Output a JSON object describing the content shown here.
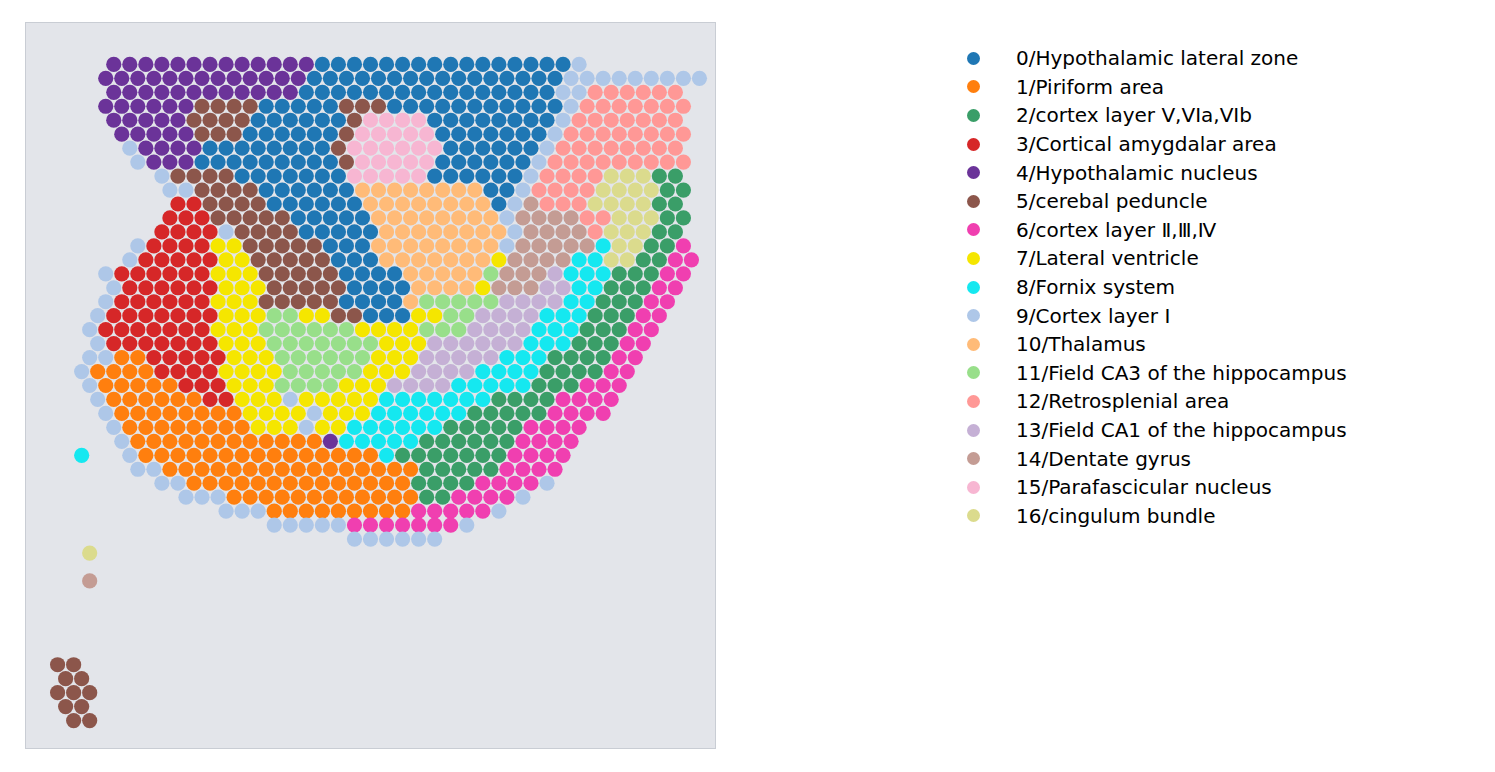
{
  "chart_data": {
    "type": "scatter",
    "legend": "right",
    "tick_labels": false,
    "xlim": [
      0,
      86
    ],
    "ylim": [
      0,
      52
    ],
    "series": [
      {
        "name": "0/Hypothalamic lateral zone",
        "color": "#1f77b4"
      },
      {
        "name": "1/Piriform area",
        "color": "#ff7f0e"
      },
      {
        "name": "2/cortex layer V,VIa,VIb",
        "color": "#3a9e68"
      },
      {
        "name": "3/Cortical amygdalar area",
        "color": "#d62728"
      },
      {
        "name": "4/Hypothalamic nucleus",
        "color": "#6b3399"
      },
      {
        "name": "5/cerebal peduncle",
        "color": "#8c564b"
      },
      {
        "name": "6/cortex layer Ⅱ,Ⅲ,Ⅳ",
        "color": "#f03fb0"
      },
      {
        "name": "7/Lateral ventricle",
        "color": "#f5e600"
      },
      {
        "name": "8/Fornix system",
        "color": "#15e8f0"
      },
      {
        "name": "9/Cortex layer I",
        "color": "#aec7e8"
      },
      {
        "name": "10/Thalamus",
        "color": "#ffbb78"
      },
      {
        "name": "11/Field CA3 of the hippocampus",
        "color": "#98df8a"
      },
      {
        "name": "12/Retrosplenial area",
        "color": "#ff9896"
      },
      {
        "name": "13/Field CA1 of the hippocampus",
        "color": "#c5b0d5"
      },
      {
        "name": "14/Dentate gyrus",
        "color": "#c49c94"
      },
      {
        "name": "15/Parafascicular nucleus",
        "color": "#f7b6d2"
      },
      {
        "name": "16/cingulum bundle",
        "color": "#dbdb8d"
      }
    ],
    "spot_runs": [
      [
        3,
        11,
        35,
        4
      ],
      [
        3,
        37,
        67,
        0
      ],
      [
        3,
        69,
        69,
        9
      ],
      [
        4,
        10,
        34,
        4
      ],
      [
        4,
        36,
        66,
        0
      ],
      [
        4,
        68,
        84,
        9
      ],
      [
        5,
        11,
        33,
        4
      ],
      [
        5,
        35,
        65,
        0
      ],
      [
        5,
        67,
        69,
        9
      ],
      [
        5,
        71,
        81,
        12
      ],
      [
        6,
        10,
        20,
        4
      ],
      [
        6,
        22,
        28,
        5
      ],
      [
        6,
        30,
        38,
        0
      ],
      [
        6,
        40,
        44,
        5
      ],
      [
        6,
        46,
        66,
        0
      ],
      [
        6,
        68,
        68,
        9
      ],
      [
        6,
        70,
        82,
        12
      ],
      [
        7,
        11,
        19,
        4
      ],
      [
        7,
        21,
        27,
        5
      ],
      [
        7,
        29,
        39,
        0
      ],
      [
        7,
        41,
        41,
        5
      ],
      [
        7,
        43,
        49,
        15
      ],
      [
        7,
        51,
        65,
        0
      ],
      [
        7,
        67,
        67,
        9
      ],
      [
        7,
        69,
        81,
        12
      ],
      [
        8,
        12,
        20,
        4
      ],
      [
        8,
        22,
        26,
        5
      ],
      [
        8,
        28,
        38,
        0
      ],
      [
        8,
        40,
        40,
        5
      ],
      [
        8,
        42,
        50,
        15
      ],
      [
        8,
        52,
        64,
        0
      ],
      [
        8,
        66,
        66,
        9
      ],
      [
        8,
        68,
        82,
        12
      ],
      [
        9,
        13,
        13,
        9
      ],
      [
        9,
        15,
        21,
        4
      ],
      [
        9,
        23,
        37,
        0
      ],
      [
        9,
        39,
        39,
        5
      ],
      [
        9,
        41,
        51,
        15
      ],
      [
        9,
        53,
        63,
        0
      ],
      [
        9,
        65,
        65,
        9
      ],
      [
        9,
        67,
        81,
        12
      ],
      [
        10,
        14,
        14,
        9
      ],
      [
        10,
        16,
        20,
        4
      ],
      [
        10,
        22,
        38,
        0
      ],
      [
        10,
        40,
        40,
        5
      ],
      [
        10,
        42,
        50,
        15
      ],
      [
        10,
        52,
        62,
        0
      ],
      [
        10,
        64,
        64,
        9
      ],
      [
        10,
        66,
        82,
        12
      ],
      [
        11,
        17,
        17,
        9
      ],
      [
        11,
        19,
        25,
        5
      ],
      [
        11,
        27,
        39,
        0
      ],
      [
        11,
        41,
        49,
        15
      ],
      [
        11,
        51,
        61,
        0
      ],
      [
        11,
        63,
        63,
        9
      ],
      [
        11,
        65,
        71,
        12
      ],
      [
        11,
        73,
        77,
        16
      ],
      [
        11,
        79,
        81,
        2
      ],
      [
        12,
        18,
        20,
        9
      ],
      [
        12,
        22,
        28,
        5
      ],
      [
        12,
        30,
        40,
        0
      ],
      [
        12,
        42,
        56,
        10
      ],
      [
        12,
        58,
        60,
        0
      ],
      [
        12,
        62,
        62,
        9
      ],
      [
        12,
        64,
        70,
        12
      ],
      [
        12,
        72,
        78,
        16
      ],
      [
        12,
        80,
        82,
        2
      ],
      [
        13,
        19,
        21,
        3
      ],
      [
        13,
        23,
        29,
        5
      ],
      [
        13,
        31,
        41,
        0
      ],
      [
        13,
        43,
        57,
        10
      ],
      [
        13,
        59,
        59,
        0
      ],
      [
        13,
        61,
        61,
        9
      ],
      [
        13,
        63,
        63,
        14
      ],
      [
        13,
        65,
        69,
        12
      ],
      [
        13,
        71,
        77,
        16
      ],
      [
        13,
        79,
        81,
        2
      ],
      [
        14,
        18,
        22,
        3
      ],
      [
        14,
        24,
        32,
        5
      ],
      [
        14,
        34,
        42,
        0
      ],
      [
        14,
        44,
        58,
        10
      ],
      [
        14,
        60,
        60,
        9
      ],
      [
        14,
        62,
        68,
        14
      ],
      [
        14,
        70,
        72,
        12
      ],
      [
        14,
        74,
        78,
        16
      ],
      [
        14,
        80,
        82,
        2
      ],
      [
        15,
        17,
        23,
        3
      ],
      [
        15,
        25,
        25,
        9
      ],
      [
        15,
        27,
        33,
        5
      ],
      [
        15,
        35,
        43,
        0
      ],
      [
        15,
        45,
        59,
        10
      ],
      [
        15,
        61,
        61,
        9
      ],
      [
        15,
        63,
        69,
        14
      ],
      [
        15,
        71,
        71,
        12
      ],
      [
        15,
        73,
        77,
        16
      ],
      [
        15,
        79,
        81,
        2
      ],
      [
        16,
        14,
        14,
        9
      ],
      [
        16,
        16,
        22,
        3
      ],
      [
        16,
        24,
        26,
        7
      ],
      [
        16,
        28,
        36,
        5
      ],
      [
        16,
        38,
        42,
        0
      ],
      [
        16,
        44,
        58,
        10
      ],
      [
        16,
        60,
        60,
        9
      ],
      [
        16,
        62,
        70,
        14
      ],
      [
        16,
        72,
        72,
        8
      ],
      [
        16,
        74,
        76,
        16
      ],
      [
        16,
        78,
        80,
        2
      ],
      [
        16,
        82,
        82,
        6
      ],
      [
        17,
        13,
        13,
        9
      ],
      [
        17,
        15,
        23,
        3
      ],
      [
        17,
        25,
        27,
        7
      ],
      [
        17,
        29,
        37,
        5
      ],
      [
        17,
        39,
        43,
        0
      ],
      [
        17,
        45,
        57,
        10
      ],
      [
        17,
        59,
        59,
        7
      ],
      [
        17,
        61,
        67,
        14
      ],
      [
        17,
        69,
        71,
        8
      ],
      [
        17,
        73,
        75,
        16
      ],
      [
        17,
        77,
        79,
        2
      ],
      [
        17,
        81,
        83,
        6
      ],
      [
        18,
        10,
        10,
        9
      ],
      [
        18,
        12,
        22,
        3
      ],
      [
        18,
        24,
        28,
        7
      ],
      [
        18,
        30,
        38,
        5
      ],
      [
        18,
        40,
        46,
        0
      ],
      [
        18,
        48,
        56,
        10
      ],
      [
        18,
        58,
        58,
        11
      ],
      [
        18,
        60,
        64,
        14
      ],
      [
        18,
        66,
        66,
        13
      ],
      [
        18,
        68,
        72,
        8
      ],
      [
        18,
        74,
        78,
        2
      ],
      [
        18,
        80,
        82,
        6
      ],
      [
        19,
        11,
        11,
        9
      ],
      [
        19,
        13,
        23,
        3
      ],
      [
        19,
        25,
        29,
        7
      ],
      [
        19,
        31,
        39,
        5
      ],
      [
        19,
        41,
        47,
        0
      ],
      [
        19,
        49,
        55,
        10
      ],
      [
        19,
        57,
        57,
        7
      ],
      [
        19,
        59,
        63,
        14
      ],
      [
        19,
        65,
        67,
        13
      ],
      [
        19,
        69,
        71,
        8
      ],
      [
        19,
        73,
        77,
        2
      ],
      [
        19,
        79,
        81,
        6
      ],
      [
        20,
        10,
        10,
        9
      ],
      [
        20,
        12,
        22,
        3
      ],
      [
        20,
        24,
        28,
        7
      ],
      [
        20,
        30,
        38,
        5
      ],
      [
        20,
        40,
        46,
        0
      ],
      [
        20,
        48,
        48,
        10
      ],
      [
        20,
        50,
        58,
        11
      ],
      [
        20,
        60,
        66,
        13
      ],
      [
        20,
        68,
        70,
        8
      ],
      [
        20,
        72,
        76,
        2
      ],
      [
        20,
        78,
        80,
        6
      ],
      [
        21,
        9,
        9,
        9
      ],
      [
        21,
        11,
        23,
        3
      ],
      [
        21,
        25,
        29,
        7
      ],
      [
        21,
        31,
        33,
        11
      ],
      [
        21,
        35,
        37,
        7
      ],
      [
        21,
        39,
        41,
        5
      ],
      [
        21,
        43,
        47,
        0
      ],
      [
        21,
        49,
        51,
        7
      ],
      [
        21,
        53,
        55,
        11
      ],
      [
        21,
        57,
        63,
        13
      ],
      [
        21,
        65,
        69,
        8
      ],
      [
        21,
        71,
        75,
        2
      ],
      [
        21,
        77,
        79,
        6
      ],
      [
        22,
        8,
        8,
        9
      ],
      [
        22,
        10,
        22,
        3
      ],
      [
        22,
        24,
        28,
        7
      ],
      [
        22,
        30,
        40,
        11
      ],
      [
        22,
        42,
        48,
        7
      ],
      [
        22,
        50,
        54,
        11
      ],
      [
        22,
        56,
        62,
        13
      ],
      [
        22,
        64,
        68,
        8
      ],
      [
        22,
        70,
        74,
        2
      ],
      [
        22,
        76,
        78,
        6
      ],
      [
        23,
        9,
        9,
        9
      ],
      [
        23,
        11,
        23,
        3
      ],
      [
        23,
        25,
        29,
        7
      ],
      [
        23,
        31,
        43,
        11
      ],
      [
        23,
        45,
        49,
        7
      ],
      [
        23,
        51,
        61,
        13
      ],
      [
        23,
        63,
        67,
        8
      ],
      [
        23,
        69,
        73,
        2
      ],
      [
        23,
        75,
        77,
        6
      ],
      [
        24,
        8,
        10,
        9
      ],
      [
        24,
        12,
        14,
        1
      ],
      [
        24,
        16,
        24,
        3
      ],
      [
        24,
        26,
        30,
        7
      ],
      [
        24,
        32,
        42,
        11
      ],
      [
        24,
        44,
        48,
        7
      ],
      [
        24,
        50,
        58,
        13
      ],
      [
        24,
        60,
        64,
        8
      ],
      [
        24,
        66,
        72,
        2
      ],
      [
        24,
        74,
        76,
        6
      ],
      [
        25,
        7,
        7,
        9
      ],
      [
        25,
        9,
        15,
        1
      ],
      [
        25,
        17,
        23,
        3
      ],
      [
        25,
        25,
        31,
        7
      ],
      [
        25,
        33,
        41,
        11
      ],
      [
        25,
        43,
        47,
        7
      ],
      [
        25,
        49,
        55,
        13
      ],
      [
        25,
        57,
        63,
        8
      ],
      [
        25,
        65,
        71,
        2
      ],
      [
        25,
        73,
        75,
        6
      ],
      [
        26,
        8,
        8,
        9
      ],
      [
        26,
        10,
        18,
        1
      ],
      [
        26,
        20,
        24,
        3
      ],
      [
        26,
        26,
        30,
        7
      ],
      [
        26,
        32,
        38,
        11
      ],
      [
        26,
        40,
        44,
        7
      ],
      [
        26,
        46,
        52,
        13
      ],
      [
        26,
        54,
        62,
        8
      ],
      [
        26,
        64,
        68,
        2
      ],
      [
        26,
        70,
        74,
        6
      ],
      [
        27,
        9,
        9,
        9
      ],
      [
        27,
        11,
        21,
        1
      ],
      [
        27,
        23,
        25,
        3
      ],
      [
        27,
        27,
        31,
        7
      ],
      [
        27,
        33,
        33,
        9
      ],
      [
        27,
        35,
        43,
        7
      ],
      [
        27,
        45,
        57,
        8
      ],
      [
        27,
        59,
        65,
        2
      ],
      [
        27,
        67,
        73,
        6
      ],
      [
        28,
        10,
        10,
        9
      ],
      [
        28,
        12,
        26,
        1
      ],
      [
        28,
        28,
        34,
        7
      ],
      [
        28,
        36,
        36,
        9
      ],
      [
        28,
        38,
        42,
        7
      ],
      [
        28,
        44,
        54,
        8
      ],
      [
        28,
        56,
        64,
        2
      ],
      [
        28,
        66,
        72,
        6
      ],
      [
        29,
        11,
        11,
        9
      ],
      [
        29,
        13,
        27,
        1
      ],
      [
        29,
        29,
        33,
        7
      ],
      [
        29,
        35,
        35,
        9
      ],
      [
        29,
        37,
        39,
        7
      ],
      [
        29,
        41,
        51,
        8
      ],
      [
        29,
        53,
        61,
        2
      ],
      [
        29,
        63,
        69,
        6
      ],
      [
        30,
        12,
        12,
        9
      ],
      [
        30,
        14,
        36,
        1
      ],
      [
        30,
        38,
        38,
        4
      ],
      [
        30,
        40,
        48,
        8
      ],
      [
        30,
        50,
        60,
        2
      ],
      [
        30,
        62,
        68,
        6
      ],
      [
        31,
        7,
        7,
        8
      ],
      [
        31,
        13,
        13,
        9
      ],
      [
        31,
        15,
        43,
        1
      ],
      [
        31,
        45,
        45,
        8
      ],
      [
        31,
        47,
        59,
        2
      ],
      [
        31,
        61,
        67,
        6
      ],
      [
        32,
        14,
        16,
        9
      ],
      [
        32,
        18,
        48,
        1
      ],
      [
        32,
        50,
        58,
        2
      ],
      [
        32,
        60,
        66,
        6
      ],
      [
        33,
        17,
        19,
        9
      ],
      [
        33,
        21,
        47,
        1
      ],
      [
        33,
        49,
        55,
        2
      ],
      [
        33,
        57,
        63,
        6
      ],
      [
        33,
        65,
        65,
        9
      ],
      [
        34,
        20,
        24,
        9
      ],
      [
        34,
        26,
        48,
        1
      ],
      [
        34,
        50,
        52,
        2
      ],
      [
        34,
        54,
        60,
        6
      ],
      [
        34,
        62,
        62,
        9
      ],
      [
        35,
        25,
        29,
        9
      ],
      [
        35,
        31,
        47,
        1
      ],
      [
        35,
        49,
        57,
        6
      ],
      [
        35,
        59,
        59,
        9
      ],
      [
        36,
        31,
        39,
        9
      ],
      [
        36,
        41,
        53,
        6
      ],
      [
        36,
        55,
        55,
        9
      ],
      [
        37,
        41,
        51,
        9
      ],
      [
        38,
        8,
        8,
        16
      ],
      [
        40,
        8,
        8,
        14
      ],
      [
        46,
        4,
        6,
        5
      ],
      [
        47,
        5,
        7,
        5
      ],
      [
        48,
        4,
        8,
        5
      ],
      [
        49,
        5,
        7,
        5
      ],
      [
        50,
        6,
        8,
        5
      ]
    ]
  }
}
